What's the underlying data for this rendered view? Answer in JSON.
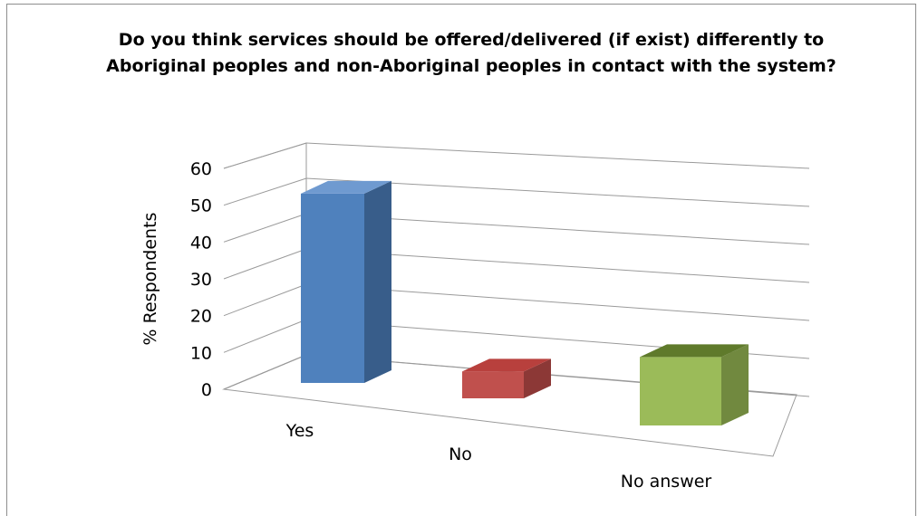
{
  "chart_data": {
    "type": "bar",
    "title": "Do you think services should be offered/delivered (if exist) differently to Aboriginal peoples and non-Aboriginal peoples in contact with the system?",
    "xlabel": "",
    "ylabel": "% Respondents",
    "categories": [
      "Yes",
      "No",
      "No answer"
    ],
    "values": [
      51,
      8,
      17
    ],
    "ylim": [
      0,
      60
    ],
    "yticks": [
      "0",
      "10",
      "20",
      "30",
      "40",
      "50",
      "60"
    ],
    "grid": true,
    "legend": "none",
    "colors": [
      "#4f81bd",
      "#c0504d",
      "#9bbb59"
    ],
    "side_colors": [
      "#385d8a",
      "#8c3836",
      "#71893f"
    ],
    "top_colors": [
      "#6f9ad0",
      "#b8403d",
      "#5f7a2b"
    ]
  }
}
